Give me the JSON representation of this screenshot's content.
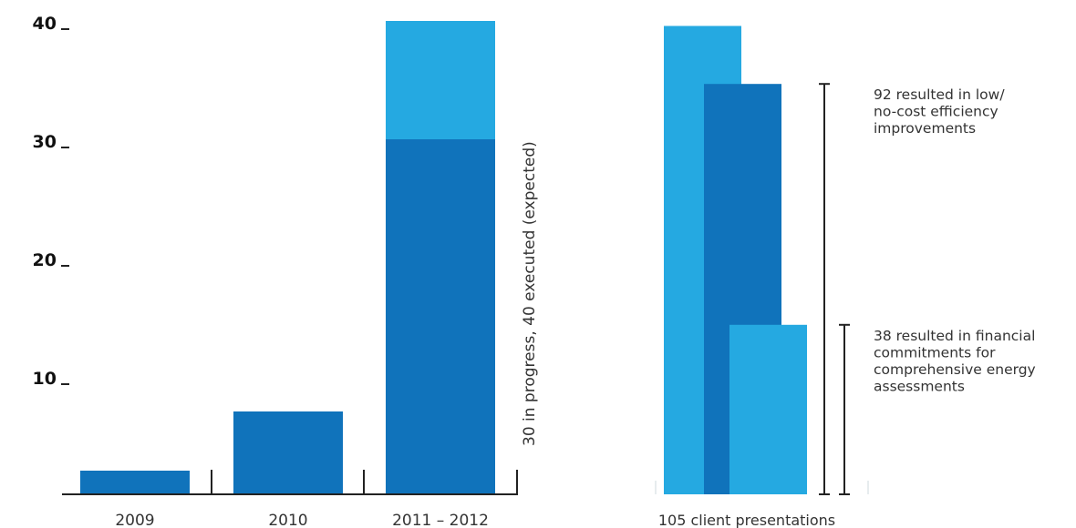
{
  "colors": {
    "dark_blue": "#1073bb",
    "light_blue": "#25a9e1",
    "axis": "#222222"
  },
  "chart_data": [
    {
      "type": "bar",
      "stacked": true,
      "categories": [
        "2009",
        "2010",
        "2011 – 2012"
      ],
      "series": [
        {
          "values": [
            2,
            7,
            30
          ],
          "color": "#1073bb"
        },
        {
          "values": [
            0,
            0,
            10
          ],
          "color": "#25a9e1"
        }
      ],
      "y_ticks": [
        10,
        20,
        30,
        40
      ],
      "ylim": [
        0,
        40
      ],
      "annotation": "30 in progress, 40 executed (expected)"
    },
    {
      "type": "bar",
      "categories": [
        "105 client presentations"
      ],
      "series": [
        {
          "values": [
            105
          ],
          "color": "#25a9e1"
        },
        {
          "values": [
            92
          ],
          "color": "#1073bb"
        },
        {
          "values": [
            38
          ],
          "color": "#25a9e1"
        }
      ],
      "annotations": [
        {
          "value": 92,
          "lines": [
            "92 resulted in low/",
            "no-cost efficiency",
            "improvements"
          ]
        },
        {
          "value": 38,
          "lines": [
            "38 resulted in financial",
            "commitments for",
            "comprehensive energy",
            "assessments"
          ]
        }
      ]
    }
  ]
}
